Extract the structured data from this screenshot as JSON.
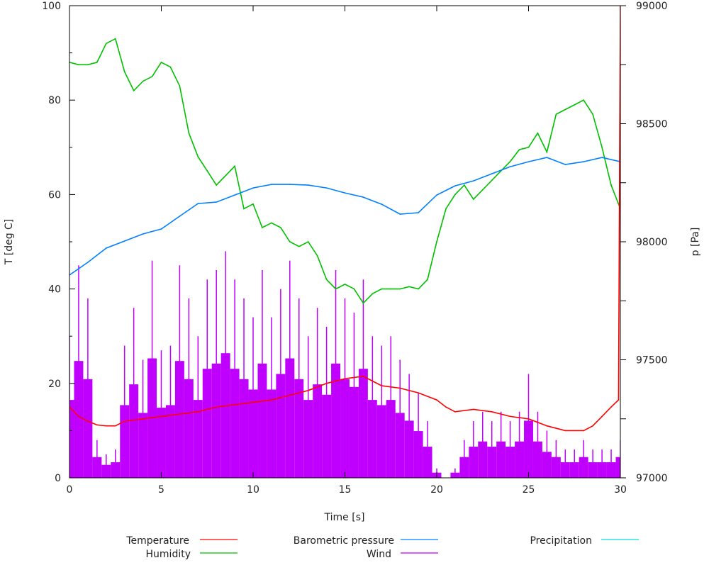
{
  "chart_data": {
    "type": "line",
    "xlabel": "Time [s]",
    "ylabel": "T [deg C]",
    "y2label": "p [Pa]",
    "xlim": [
      0,
      30
    ],
    "ylim": [
      0,
      100
    ],
    "y2lim": [
      97000,
      99000
    ],
    "xticks": [
      0,
      5,
      10,
      15,
      20,
      25,
      30
    ],
    "yticks": [
      0,
      20,
      40,
      60,
      80,
      100
    ],
    "y2ticks": [
      97000,
      97500,
      98000,
      98500,
      99000
    ],
    "grid": false,
    "legend_position": "bottom",
    "series": [
      {
        "name": "Temperature",
        "axis": "left",
        "style": "line",
        "color": "#ff0000",
        "x": [
          0,
          0.5,
          1,
          1.5,
          2,
          2.5,
          3,
          4,
          5,
          6,
          7,
          8,
          9,
          10,
          11,
          12,
          12.5,
          13,
          14,
          15,
          16,
          16.5,
          17,
          18,
          19,
          20,
          20.5,
          21,
          22,
          23,
          24,
          25,
          26,
          27,
          28,
          28.5,
          29,
          29.5,
          29.9,
          30
        ],
        "values": [
          15,
          13,
          12,
          11.2,
          11,
          11,
          12,
          12.5,
          13,
          13.5,
          14,
          15,
          15.5,
          16,
          16.5,
          17.5,
          18,
          18.5,
          20,
          21,
          21.5,
          20.5,
          19.5,
          19,
          18,
          16.5,
          15,
          14,
          14.5,
          14,
          13,
          12.5,
          11,
          10,
          10,
          11,
          13,
          15,
          16.5,
          100
        ]
      },
      {
        "name": "Humidity",
        "axis": "left",
        "style": "line",
        "color": "#00c000",
        "x": [
          0,
          0.5,
          1,
          1.5,
          2,
          2.5,
          3,
          3.5,
          4,
          4.5,
          5,
          5.5,
          6,
          6.5,
          7,
          7.5,
          8,
          8.5,
          9,
          9.5,
          10,
          10.5,
          11,
          11.5,
          12,
          12.5,
          13,
          13.5,
          14,
          14.5,
          15,
          15.5,
          16,
          16.5,
          17,
          17.5,
          18,
          18.5,
          19,
          19.5,
          20,
          20.5,
          21,
          21.5,
          22,
          22.5,
          23,
          23.5,
          24,
          24.5,
          25,
          25.5,
          26,
          26.5,
          27,
          27.5,
          28,
          28.5,
          29,
          29.5,
          30
        ],
        "values": [
          88,
          87.5,
          87.5,
          88,
          92,
          93,
          86,
          82,
          84,
          85,
          88,
          87,
          83,
          73,
          68,
          65,
          62,
          64,
          66,
          57,
          58,
          53,
          54,
          53,
          50,
          49,
          50,
          47,
          42,
          40,
          41,
          40,
          37,
          39,
          40,
          40,
          40,
          40.5,
          40,
          42,
          50,
          57,
          60,
          62,
          59,
          61,
          63,
          65,
          67,
          69.5,
          70,
          73,
          69,
          77,
          78,
          79,
          80,
          77,
          70,
          62,
          57
        ]
      },
      {
        "name": "Barometric pressure",
        "axis": "right",
        "style": "line",
        "color": "#0080ff",
        "x": [
          0,
          1,
          2,
          3,
          4,
          5,
          6,
          7,
          8,
          9,
          10,
          11,
          12,
          13,
          14,
          15,
          16,
          17,
          18,
          19,
          20,
          21,
          22,
          23,
          24,
          25,
          26,
          27,
          28,
          29,
          30
        ],
        "values": [
          97859,
          97913,
          97973,
          98003,
          98033,
          98054,
          98108,
          98162,
          98168,
          98198,
          98228,
          98243,
          98243,
          98240,
          98228,
          98207,
          98189,
          98159,
          98117,
          98123,
          98198,
          98237,
          98258,
          98288,
          98318,
          98339,
          98357,
          98327,
          98339,
          98357,
          98339
        ]
      },
      {
        "name": "Wind",
        "axis": "left",
        "style": "impulses",
        "color": "#c000ff",
        "x": [
          0,
          0.5,
          1,
          1.5,
          2,
          2.5,
          3,
          3.5,
          4,
          4.5,
          5,
          5.5,
          6,
          6.5,
          7,
          7.5,
          8,
          8.5,
          9,
          9.5,
          10,
          10.5,
          11,
          11.5,
          12,
          12.5,
          13,
          13.5,
          14,
          14.5,
          15,
          15.5,
          16,
          16.5,
          17,
          17.5,
          18,
          18.5,
          19,
          19.5,
          20,
          20.5,
          21,
          21.5,
          22,
          22.5,
          23,
          23.5,
          24,
          24.5,
          25,
          25.5,
          26,
          26.5,
          27,
          27.5,
          28,
          28.5,
          29,
          29.5,
          30
        ],
        "values": [
          30,
          45,
          38,
          8,
          5,
          6,
          28,
          36,
          25,
          46,
          27,
          28,
          45,
          38,
          30,
          42,
          44,
          48,
          42,
          38,
          34,
          44,
          34,
          40,
          46,
          38,
          30,
          36,
          32,
          44,
          38,
          35,
          42,
          30,
          28,
          30,
          25,
          22,
          18,
          12,
          2,
          0,
          2,
          8,
          12,
          14,
          12,
          14,
          12,
          14,
          22,
          14,
          10,
          8,
          6,
          6,
          8,
          6,
          6,
          6,
          8
        ]
      },
      {
        "name": "Precipitation",
        "axis": "left",
        "style": "line",
        "color": "#00e0e0",
        "x": [],
        "values": []
      }
    ]
  }
}
